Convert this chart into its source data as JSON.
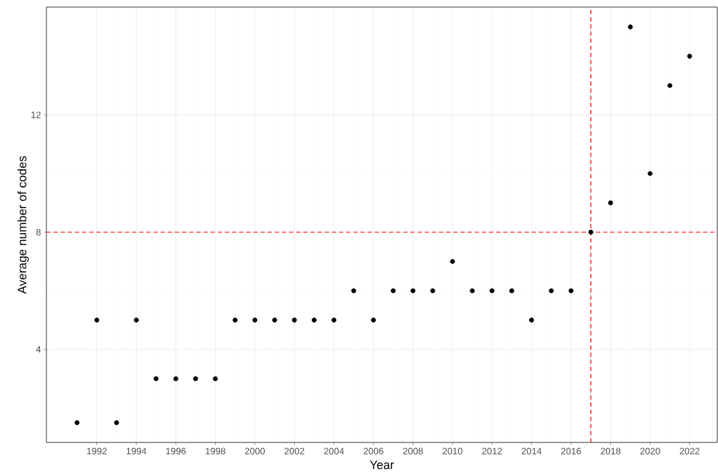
{
  "chart_data": {
    "type": "scatter",
    "xlabel": "Year",
    "ylabel": "Average number of codes",
    "x": [
      1991,
      1992,
      1993,
      1994,
      1995,
      1996,
      1997,
      1998,
      1999,
      2000,
      2001,
      2002,
      2003,
      2004,
      2005,
      2006,
      2007,
      2008,
      2009,
      2010,
      2011,
      2012,
      2013,
      2014,
      2015,
      2016,
      2017,
      2018,
      2019,
      2020,
      2021,
      2022
    ],
    "values": [
      1.5,
      5,
      1.5,
      5,
      3,
      3,
      3,
      3,
      5,
      5,
      5,
      5,
      5,
      5,
      6,
      5,
      6,
      6,
      6,
      7,
      6,
      6,
      6,
      5,
      6,
      6,
      8,
      9,
      15,
      10,
      13,
      14
    ],
    "color": "#000000",
    "marker": "circle",
    "xlim": [
      1989.45,
      2023.4
    ],
    "ylim": [
      0.825,
      15.675
    ],
    "xticks": [
      1992,
      1994,
      1996,
      1998,
      2000,
      2002,
      2004,
      2006,
      2008,
      2010,
      2012,
      2014,
      2016,
      2018,
      2020,
      2022
    ],
    "yticks": [
      4,
      8,
      12
    ],
    "grid": true,
    "ref_lines": [
      {
        "axis": "y",
        "value": 8,
        "color": "#ff0000",
        "line_style": "dashed"
      },
      {
        "axis": "x",
        "value": 2017,
        "color": "#ff0000",
        "line_style": "dashed"
      }
    ]
  }
}
